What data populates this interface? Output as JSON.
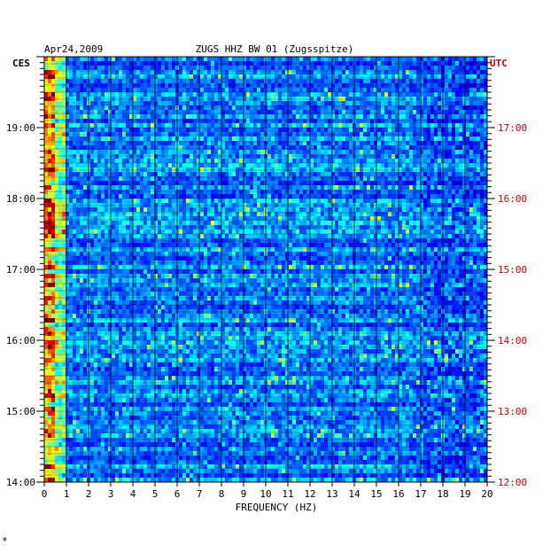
{
  "chart_data": {
    "type": "heatmap",
    "date_label": "Apr24,2009",
    "title": "ZUGS HHZ BW 01 (Zugsspitze)",
    "xlabel": "FREQUENCY (HZ)",
    "left_axis_label": "CES",
    "right_axis_label": "UTC",
    "footnote": "*",
    "xlim": [
      0,
      20
    ],
    "x_ticks": [
      "0",
      "1",
      "2",
      "3",
      "4",
      "5",
      "6",
      "7",
      "8",
      "9",
      "10",
      "11",
      "12",
      "13",
      "14",
      "15",
      "16",
      "17",
      "18",
      "19",
      "20"
    ],
    "left_ticks": [
      "19:00",
      "18:00",
      "17:00",
      "16:00",
      "15:00",
      "14:00"
    ],
    "right_ticks": [
      "17:00",
      "16:00",
      "15:00",
      "14:00",
      "13:00",
      "12:00"
    ],
    "left_tick_hours": [
      19,
      18,
      17,
      16,
      15,
      14
    ],
    "right_tick_hours": [
      17,
      16,
      15,
      14,
      13,
      12
    ],
    "utc_range_hours": [
      12.0,
      18.0
    ],
    "colors": {
      "background_low": "#0a1aa8",
      "mid": "#1e6bff",
      "high": "#3de0ff",
      "peak_yellow": "#f2f21a",
      "peak_red": "#e01a1a",
      "right_axis_text": "#cc0000",
      "left_axis_text": "#000000",
      "grid": "#000000"
    },
    "grid": "on",
    "colorscale": "jet"
  }
}
